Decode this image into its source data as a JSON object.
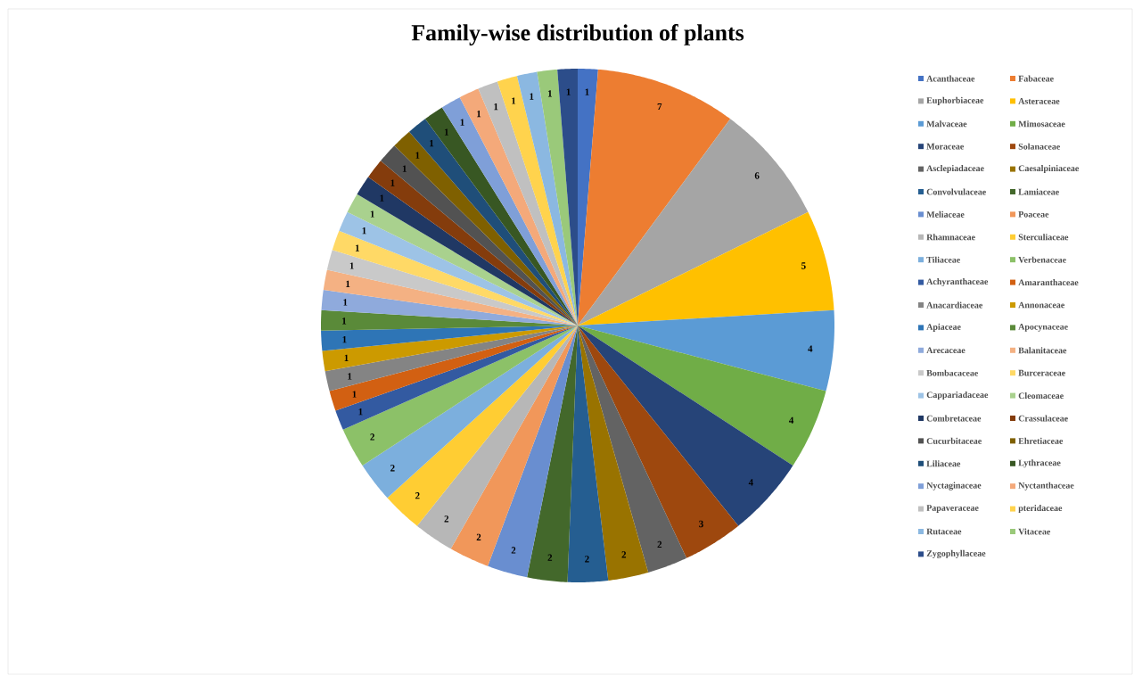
{
  "chart_data": {
    "type": "pie",
    "title": "Family-wise distribution of plants",
    "categories": [
      "Acanthaceae",
      "Fabaceae",
      "Euphorbiaceae",
      "Asteraceae",
      "Malvaceae",
      "Mimosaceae",
      "Moraceae",
      "Solanaceae",
      "Asclepiadaceae",
      "Caesalpiniaceae",
      "Convolvulaceae",
      "Lamiaceae",
      "Meliaceae",
      "Poaceae",
      "Rhamnaceae",
      "Sterculiaceae",
      "Tiliaceae",
      "Verbenaceae",
      "Achyranthaceae",
      "Amaranthaceae",
      "Anacardiaceae",
      "Annonaceae",
      "Apiaceae",
      "Apocynaceae",
      "Arecaceae",
      "Balanitaceae",
      "Bombacaceae",
      "Burceraceae",
      "Cappariadaceae",
      "Cleomaceae",
      "Combretaceae",
      "Crassulaceae",
      "Cucurbitaceae",
      "Ehretiaceae",
      "Liliaceae",
      "Lythraceae",
      "Nyctaginaceae",
      "Nyctanthaceae",
      "Papaveraceae",
      "pteridaceae",
      "Rutaceae",
      "Vitaceae",
      "Zygophyllaceae"
    ],
    "values": [
      1,
      7,
      6,
      5,
      4,
      4,
      4,
      3,
      2,
      2,
      2,
      2,
      2,
      2,
      2,
      2,
      2,
      2,
      1,
      1,
      1,
      1,
      1,
      1,
      1,
      1,
      1,
      1,
      1,
      1,
      1,
      1,
      1,
      1,
      1,
      1,
      1,
      1,
      1,
      1,
      1,
      1,
      1
    ],
    "colors": [
      "#4472c4",
      "#ed7d31",
      "#a5a5a5",
      "#ffc000",
      "#5b9bd5",
      "#70ad47",
      "#264478",
      "#9e480e",
      "#636363",
      "#997300",
      "#255e91",
      "#43682b",
      "#698ed0",
      "#f1975a",
      "#b7b7b7",
      "#ffcd33",
      "#7cafdd",
      "#8cc168",
      "#335aa1",
      "#d26012",
      "#848484",
      "#cc9a00",
      "#2e75b6",
      "#5a8a39",
      "#8faadc",
      "#f4b183",
      "#c9c9c9",
      "#ffd966",
      "#9dc3e6",
      "#a9d18e",
      "#203864",
      "#843c0c",
      "#525252",
      "#7f6000",
      "#1f4e79",
      "#385723",
      "#7f9fd8",
      "#f4a97a",
      "#c0c0c0",
      "#ffd34d",
      "#8bb8e1",
      "#9ac97a",
      "#2c4d8a"
    ],
    "data_labels": true,
    "legend": "right"
  }
}
